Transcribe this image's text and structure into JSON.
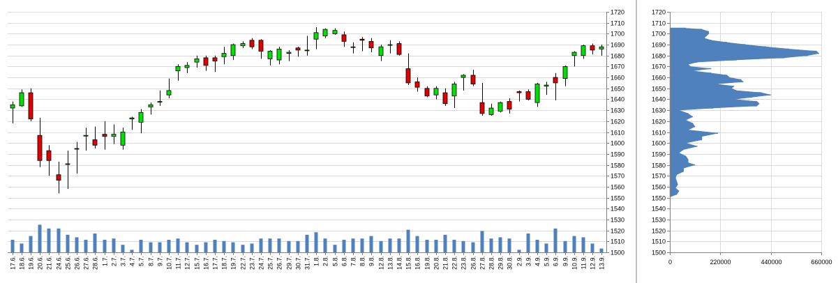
{
  "chart_data": [
    {
      "type": "candlestick",
      "ylim": [
        1500,
        1720
      ],
      "yticks": [
        1500,
        1510,
        1520,
        1530,
        1540,
        1550,
        1560,
        1570,
        1580,
        1590,
        1600,
        1610,
        1620,
        1630,
        1640,
        1650,
        1660,
        1670,
        1680,
        1690,
        1700,
        1710,
        1720
      ],
      "grid": true,
      "up_color": "#00e000",
      "down_color": "#e00000",
      "volume_color": "#4f81bd",
      "candles": [
        {
          "date": "17.6.",
          "o": 1632,
          "h": 1638,
          "l": 1618,
          "c": 1635,
          "v": 1.0
        },
        {
          "date": "18.6.",
          "o": 1634,
          "h": 1649,
          "l": 1633,
          "c": 1646,
          "v": 0.7
        },
        {
          "date": "19.6.",
          "o": 1646,
          "h": 1650,
          "l": 1620,
          "c": 1622,
          "v": 1.3
        },
        {
          "date": "20.6.",
          "o": 1607,
          "h": 1623,
          "l": 1578,
          "c": 1584,
          "v": 2.2
        },
        {
          "date": "21.6.",
          "o": 1593,
          "h": 1598,
          "l": 1570,
          "c": 1584,
          "v": 1.9
        },
        {
          "date": "24.6.",
          "o": 1571,
          "h": 1583,
          "l": 1554,
          "c": 1566,
          "v": 1.9
        },
        {
          "date": "25.6.",
          "o": 1581,
          "h": 1593,
          "l": 1558,
          "c": 1581,
          "v": 1.4
        },
        {
          "date": "26.6.",
          "o": 1595,
          "h": 1601,
          "l": 1572,
          "c": 1595,
          "v": 1.2
        },
        {
          "date": "27.6.",
          "o": 1607,
          "h": 1614,
          "l": 1593,
          "c": 1607,
          "v": 1.0
        },
        {
          "date": "28.6.",
          "o": 1603,
          "h": 1615,
          "l": 1595,
          "c": 1598,
          "v": 1.5
        },
        {
          "date": "1.7.",
          "o": 1608,
          "h": 1620,
          "l": 1594,
          "c": 1606,
          "v": 1.0
        },
        {
          "date": "2.7.",
          "o": 1606,
          "h": 1617,
          "l": 1599,
          "c": 1608,
          "v": 1.1
        },
        {
          "date": "3.7.",
          "o": 1598,
          "h": 1614,
          "l": 1594,
          "c": 1610,
          "v": 0.6
        },
        {
          "date": "4.7.",
          "o": 1622,
          "h": 1624,
          "l": 1612,
          "c": 1623,
          "v": 0.2
        },
        {
          "date": "5.7.",
          "o": 1619,
          "h": 1631,
          "l": 1609,
          "c": 1628,
          "v": 1.0
        },
        {
          "date": "8.7.",
          "o": 1633,
          "h": 1637,
          "l": 1626,
          "c": 1635,
          "v": 0.8
        },
        {
          "date": "9.7.",
          "o": 1638,
          "h": 1648,
          "l": 1634,
          "c": 1638,
          "v": 0.8
        },
        {
          "date": "10.7.",
          "o": 1644,
          "h": 1659,
          "l": 1641,
          "c": 1648,
          "v": 1.0
        },
        {
          "date": "11.7.",
          "o": 1666,
          "h": 1672,
          "l": 1657,
          "c": 1670,
          "v": 1.1
        },
        {
          "date": "12.7.",
          "o": 1669,
          "h": 1674,
          "l": 1664,
          "c": 1671,
          "v": 0.8
        },
        {
          "date": "15.7.",
          "o": 1674,
          "h": 1680,
          "l": 1669,
          "c": 1677,
          "v": 0.6
        },
        {
          "date": "16.7.",
          "o": 1678,
          "h": 1680,
          "l": 1666,
          "c": 1671,
          "v": 0.8
        },
        {
          "date": "17.7.",
          "o": 1678,
          "h": 1680,
          "l": 1665,
          "c": 1675,
          "v": 1.0
        },
        {
          "date": "18.7.",
          "o": 1679,
          "h": 1688,
          "l": 1672,
          "c": 1682,
          "v": 0.9
        },
        {
          "date": "19.7.",
          "o": 1680,
          "h": 1691,
          "l": 1676,
          "c": 1690,
          "v": 0.8
        },
        {
          "date": "22.7.",
          "o": 1689,
          "h": 1693,
          "l": 1687,
          "c": 1691,
          "v": 0.6
        },
        {
          "date": "23.7.",
          "o": 1694,
          "h": 1696,
          "l": 1686,
          "c": 1688,
          "v": 0.7
        },
        {
          "date": "24.7.",
          "o": 1694,
          "h": 1695,
          "l": 1677,
          "c": 1684,
          "v": 1.1
        },
        {
          "date": "25.7.",
          "o": 1677,
          "h": 1685,
          "l": 1671,
          "c": 1684,
          "v": 1.1
        },
        {
          "date": "26.7.",
          "o": 1676,
          "h": 1688,
          "l": 1672,
          "c": 1686,
          "v": 1.1
        },
        {
          "date": "29.7.",
          "o": 1682,
          "h": 1685,
          "l": 1675,
          "c": 1683,
          "v": 0.9
        },
        {
          "date": "30.7.",
          "o": 1687,
          "h": 1688,
          "l": 1679,
          "c": 1685,
          "v": 0.9
        },
        {
          "date": "31.7.",
          "o": 1685,
          "h": 1698,
          "l": 1680,
          "c": 1685,
          "v": 1.4
        },
        {
          "date": "1.8.",
          "o": 1695,
          "h": 1706,
          "l": 1686,
          "c": 1701,
          "v": 1.6
        },
        {
          "date": "2.8.",
          "o": 1698,
          "h": 1705,
          "l": 1696,
          "c": 1704,
          "v": 1.1
        },
        {
          "date": "5.8.",
          "o": 1700,
          "h": 1705,
          "l": 1699,
          "c": 1703,
          "v": 0.6
        },
        {
          "date": "6.8.",
          "o": 1699,
          "h": 1702,
          "l": 1688,
          "c": 1693,
          "v": 1.0
        },
        {
          "date": "7.8.",
          "o": 1688,
          "h": 1692,
          "l": 1682,
          "c": 1688,
          "v": 1.1
        },
        {
          "date": "8.8.",
          "o": 1695,
          "h": 1697,
          "l": 1684,
          "c": 1694,
          "v": 1.1
        },
        {
          "date": "9.8.",
          "o": 1693,
          "h": 1696,
          "l": 1683,
          "c": 1687,
          "v": 1.3
        },
        {
          "date": "12.8.",
          "o": 1680,
          "h": 1690,
          "l": 1675,
          "c": 1688,
          "v": 0.9
        },
        {
          "date": "13.8.",
          "o": 1690,
          "h": 1694,
          "l": 1682,
          "c": 1690,
          "v": 1.1
        },
        {
          "date": "14.8.",
          "o": 1691,
          "h": 1693,
          "l": 1680,
          "c": 1681,
          "v": 1.1
        },
        {
          "date": "15.8.",
          "o": 1668,
          "h": 1682,
          "l": 1653,
          "c": 1655,
          "v": 1.8
        },
        {
          "date": "16.8.",
          "o": 1656,
          "h": 1660,
          "l": 1647,
          "c": 1651,
          "v": 1.3
        },
        {
          "date": "19.8.",
          "o": 1650,
          "h": 1652,
          "l": 1642,
          "c": 1643,
          "v": 1.0
        },
        {
          "date": "20.8.",
          "o": 1644,
          "h": 1652,
          "l": 1640,
          "c": 1650,
          "v": 1.0
        },
        {
          "date": "21.8.",
          "o": 1646,
          "h": 1650,
          "l": 1634,
          "c": 1636,
          "v": 1.4
        },
        {
          "date": "22.8.",
          "o": 1643,
          "h": 1656,
          "l": 1632,
          "c": 1654,
          "v": 1.0
        },
        {
          "date": "23.8.",
          "o": 1660,
          "h": 1663,
          "l": 1648,
          "c": 1662,
          "v": 0.9
        },
        {
          "date": "26.8.",
          "o": 1662,
          "h": 1667,
          "l": 1652,
          "c": 1654,
          "v": 0.8
        },
        {
          "date": "27.8.",
          "o": 1637,
          "h": 1655,
          "l": 1625,
          "c": 1627,
          "v": 1.7
        },
        {
          "date": "28.8.",
          "o": 1626,
          "h": 1636,
          "l": 1625,
          "c": 1632,
          "v": 1.1
        },
        {
          "date": "29.8.",
          "o": 1629,
          "h": 1638,
          "l": 1628,
          "c": 1637,
          "v": 1.2
        },
        {
          "date": "30.8.",
          "o": 1638,
          "h": 1641,
          "l": 1627,
          "c": 1631,
          "v": 1.1
        },
        {
          "date": "2.9.",
          "o": 1647,
          "h": 1648,
          "l": 1638,
          "c": 1646,
          "v": 0.2
        },
        {
          "date": "3.9.",
          "o": 1647,
          "h": 1649,
          "l": 1639,
          "c": 1640,
          "v": 1.5
        },
        {
          "date": "4.9.",
          "o": 1637,
          "h": 1655,
          "l": 1633,
          "c": 1654,
          "v": 1.0
        },
        {
          "date": "5.9.",
          "o": 1652,
          "h": 1656,
          "l": 1644,
          "c": 1653,
          "v": 0.7
        },
        {
          "date": "6.9.",
          "o": 1660,
          "h": 1664,
          "l": 1639,
          "c": 1655,
          "v": 1.9
        },
        {
          "date": "9.9.",
          "o": 1659,
          "h": 1671,
          "l": 1652,
          "c": 1670,
          "v": 0.9
        },
        {
          "date": "10.9.",
          "o": 1680,
          "h": 1684,
          "l": 1670,
          "c": 1683,
          "v": 1.3
        },
        {
          "date": "11.9.",
          "o": 1680,
          "h": 1690,
          "l": 1677,
          "c": 1689,
          "v": 1.2
        },
        {
          "date": "12.9.",
          "o": 1689,
          "h": 1691,
          "l": 1681,
          "c": 1685,
          "v": 0.7
        },
        {
          "date": "13.9.",
          "o": 1686,
          "h": 1690,
          "l": 1680,
          "c": 1688,
          "v": 0.3
        }
      ]
    },
    {
      "type": "bar",
      "orientation": "horizontal",
      "ylim": [
        1500,
        1720
      ],
      "yticks": [
        1500,
        1510,
        1520,
        1530,
        1540,
        1550,
        1560,
        1570,
        1580,
        1590,
        1600,
        1610,
        1620,
        1630,
        1640,
        1650,
        1660,
        1670,
        1680,
        1690,
        1700,
        1710,
        1720
      ],
      "xlim": [
        0,
        660000
      ],
      "xticks": [
        "0",
        "220000",
        "440000",
        "660000"
      ],
      "color": "#4f81bd",
      "profile": [
        [
          1551,
          5000
        ],
        [
          1553,
          30000
        ],
        [
          1556,
          40000
        ],
        [
          1559,
          25000
        ],
        [
          1562,
          35000
        ],
        [
          1565,
          30000
        ],
        [
          1568,
          25000
        ],
        [
          1571,
          30000
        ],
        [
          1574,
          60000
        ],
        [
          1577,
          60000
        ],
        [
          1580,
          110000
        ],
        [
          1582,
          80000
        ],
        [
          1585,
          80000
        ],
        [
          1588,
          70000
        ],
        [
          1591,
          40000
        ],
        [
          1594,
          60000
        ],
        [
          1597,
          120000
        ],
        [
          1600,
          70000
        ],
        [
          1603,
          140000
        ],
        [
          1606,
          140000
        ],
        [
          1609,
          210000
        ],
        [
          1612,
          80000
        ],
        [
          1615,
          110000
        ],
        [
          1618,
          100000
        ],
        [
          1621,
          70000
        ],
        [
          1624,
          100000
        ],
        [
          1627,
          80000
        ],
        [
          1630,
          40000
        ],
        [
          1632,
          190000
        ],
        [
          1634,
          380000
        ],
        [
          1636,
          390000
        ],
        [
          1638,
          380000
        ],
        [
          1640,
          280000
        ],
        [
          1642,
          360000
        ],
        [
          1644,
          440000
        ],
        [
          1646,
          400000
        ],
        [
          1648,
          290000
        ],
        [
          1650,
          270000
        ],
        [
          1652,
          280000
        ],
        [
          1654,
          200000
        ],
        [
          1656,
          320000
        ],
        [
          1658,
          310000
        ],
        [
          1660,
          260000
        ],
        [
          1662,
          250000
        ],
        [
          1664,
          180000
        ],
        [
          1666,
          100000
        ],
        [
          1668,
          180000
        ],
        [
          1670,
          90000
        ],
        [
          1672,
          80000
        ],
        [
          1674,
          120000
        ],
        [
          1676,
          290000
        ],
        [
          1678,
          500000
        ],
        [
          1680,
          600000
        ],
        [
          1682,
          650000
        ],
        [
          1684,
          640000
        ],
        [
          1686,
          520000
        ],
        [
          1688,
          420000
        ],
        [
          1690,
          330000
        ],
        [
          1692,
          250000
        ],
        [
          1694,
          180000
        ],
        [
          1696,
          150000
        ],
        [
          1698,
          160000
        ],
        [
          1700,
          170000
        ],
        [
          1702,
          170000
        ],
        [
          1704,
          140000
        ],
        [
          1705,
          70000
        ]
      ]
    }
  ]
}
